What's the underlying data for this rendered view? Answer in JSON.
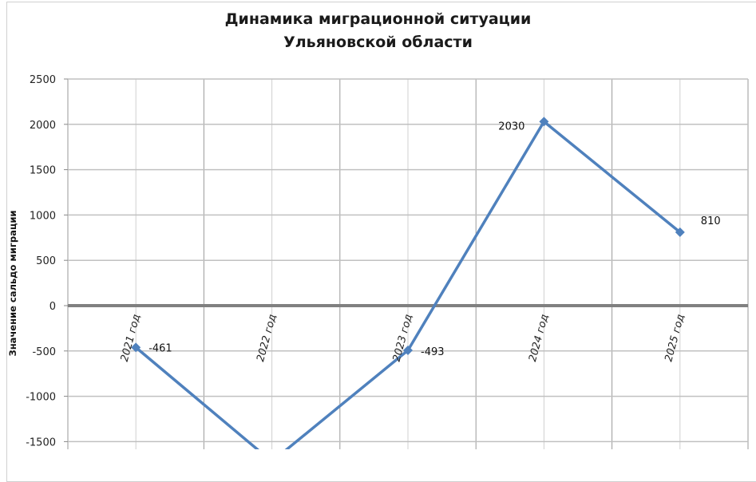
{
  "chart_data": {
    "type": "line",
    "title_lines": [
      "Динамика миграционной ситуации",
      "Ульяновской области"
    ],
    "ylabel": "Значение сальдо миграции",
    "xlabel": "",
    "categories": [
      "2021 год",
      "2022 год",
      "2023 год",
      "2024 год",
      "2025 год"
    ],
    "values": [
      -461,
      -1720,
      -493,
      2030,
      810
    ],
    "data_labels": [
      "-461",
      "",
      "-493",
      "2030",
      "810"
    ],
    "yticks": [
      2500,
      2000,
      1500,
      1000,
      500,
      0,
      -500,
      -1000,
      -1500
    ],
    "ylim": [
      -1600,
      2500
    ],
    "grid": true,
    "legend": "none",
    "colors": {
      "series": "#4f81bd",
      "grid": "#c0c0c0",
      "zero_axis": "#808080"
    }
  }
}
